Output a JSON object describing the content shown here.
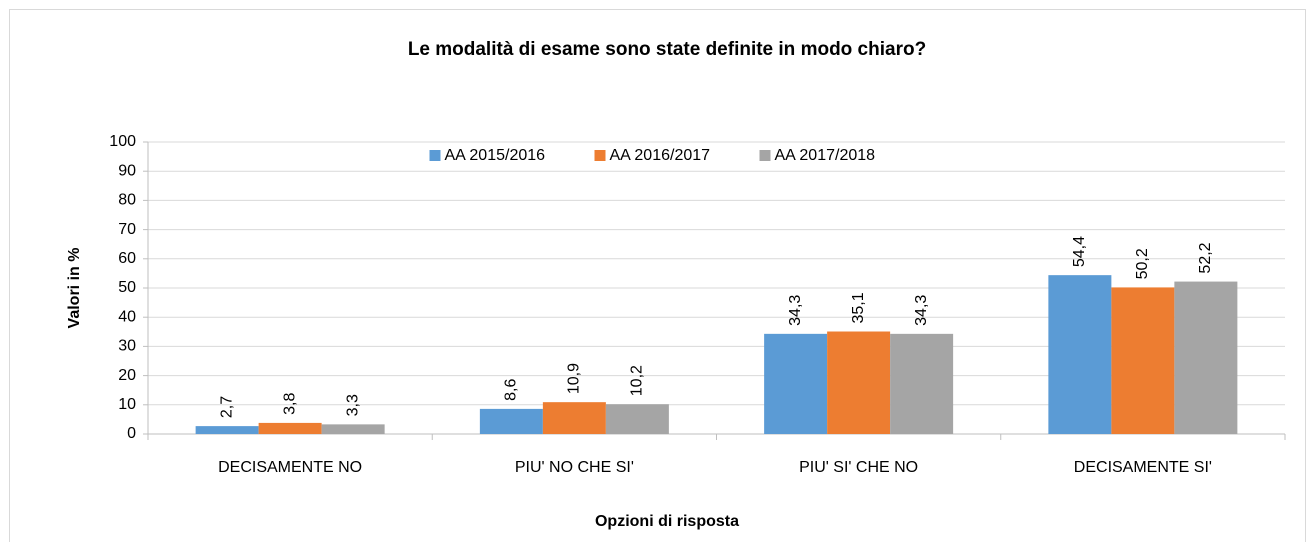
{
  "chart_data": {
    "type": "bar",
    "title": "Le modalità di esame sono state definite in modo chiaro?",
    "x_label": "Opzioni di risposta",
    "y_label": "Valori in %",
    "categories": [
      "DECISAMENTE NO",
      "PIU' NO CHE SI'",
      "PIU' SI' CHE NO",
      "DECISAMENTE SI'"
    ],
    "series": [
      {
        "name": "AA 2015/2016",
        "color": "#5b9bd5",
        "values": [
          2.7,
          8.6,
          34.3,
          54.4
        ],
        "value_labels": [
          "2,7",
          "8,6",
          "34,3",
          "54,4"
        ]
      },
      {
        "name": "AA 2016/2017",
        "color": "#ed7d31",
        "values": [
          3.8,
          10.9,
          35.1,
          50.2
        ],
        "value_labels": [
          "3,8",
          "10,9",
          "35,1",
          "50,2"
        ]
      },
      {
        "name": "AA 2017/2018",
        "color": "#a5a5a5",
        "values": [
          3.3,
          10.2,
          34.3,
          52.2
        ],
        "value_labels": [
          "3,3",
          "10,2",
          "34,3",
          "52,2"
        ]
      }
    ],
    "ylim": [
      0,
      100
    ],
    "yticks": [
      0,
      10,
      20,
      30,
      40,
      50,
      60,
      70,
      80,
      90,
      100
    ],
    "grid": true,
    "legend": "top"
  }
}
